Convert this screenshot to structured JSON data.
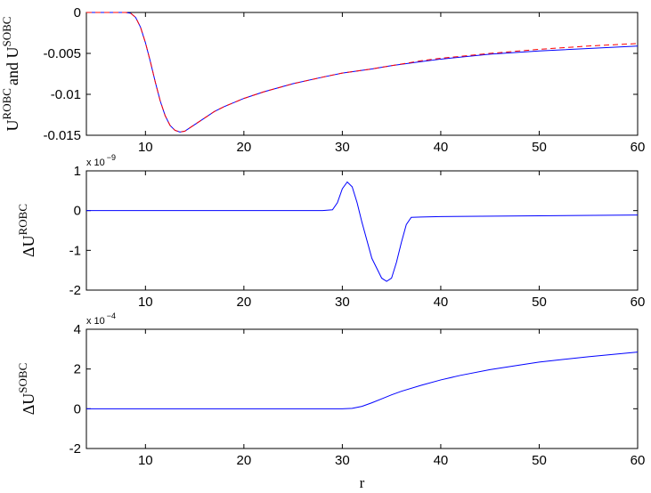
{
  "chart_data": [
    {
      "type": "line",
      "ylabel": [
        "U",
        "ROBC",
        "and U",
        "SOBC"
      ],
      "x": [
        4,
        6,
        8,
        8.5,
        9,
        9.5,
        10,
        10.5,
        11,
        11.5,
        12,
        12.5,
        13,
        13.5,
        14,
        14.5,
        15,
        16,
        17,
        18,
        20,
        22,
        25,
        28,
        30,
        33,
        35,
        38,
        40,
        45,
        50,
        55,
        60
      ],
      "series": [
        {
          "color": "#0000ff",
          "dash": false,
          "values": [
            0,
            0,
            0,
            -0.0001,
            -0.0006,
            -0.0018,
            -0.0037,
            -0.006,
            -0.0085,
            -0.0108,
            -0.0126,
            -0.0138,
            -0.0144,
            -0.0146,
            -0.0145,
            -0.0141,
            -0.0137,
            -0.0129,
            -0.0121,
            -0.0115,
            -0.0105,
            -0.0097,
            -0.0087,
            -0.0079,
            -0.0074,
            -0.0069,
            -0.0065,
            -0.006,
            -0.0057,
            -0.0051,
            -0.0047,
            -0.0044,
            -0.0041
          ]
        },
        {
          "color": "#ff0000",
          "dash": true,
          "values": [
            0,
            0,
            0,
            -0.0001,
            -0.0006,
            -0.0018,
            -0.0037,
            -0.006,
            -0.0085,
            -0.0108,
            -0.0126,
            -0.0138,
            -0.0144,
            -0.0146,
            -0.0145,
            -0.0141,
            -0.0137,
            -0.0129,
            -0.0121,
            -0.0115,
            -0.0105,
            -0.0097,
            -0.0087,
            -0.0079,
            -0.0074,
            -0.0069,
            -0.0065,
            -0.0059,
            -0.0056,
            -0.005,
            -0.0045,
            -0.0041,
            -0.0038
          ]
        }
      ],
      "xlim": [
        4,
        60
      ],
      "xticks": [
        10,
        20,
        30,
        40,
        50,
        60
      ],
      "ylim": [
        -0.015,
        0
      ],
      "yticks": [
        0,
        -0.005,
        -0.01,
        -0.015
      ],
      "grid": false
    },
    {
      "type": "line",
      "ylabel": [
        "ΔU",
        "ROBC"
      ],
      "multiplier": {
        "base": "x 10",
        "exponent": "−9"
      },
      "x": [
        4,
        10,
        20,
        28,
        29,
        29.5,
        30,
        30.5,
        31,
        31.5,
        32,
        33,
        34,
        34.5,
        35,
        35.5,
        36,
        36.5,
        37,
        38,
        40,
        50,
        60
      ],
      "series": [
        {
          "color": "#0000ff",
          "dash": false,
          "values": [
            0,
            0,
            0,
            0,
            0.02,
            0.2,
            0.55,
            0.72,
            0.6,
            0.2,
            -0.3,
            -1.2,
            -1.7,
            -1.78,
            -1.7,
            -1.3,
            -0.8,
            -0.35,
            -0.17,
            -0.16,
            -0.15,
            -0.13,
            -0.11
          ]
        }
      ],
      "xlim": [
        4,
        60
      ],
      "xticks": [
        10,
        20,
        30,
        40,
        50,
        60
      ],
      "ylim": [
        -2,
        1
      ],
      "yticks": [
        1,
        0,
        -1,
        -2
      ],
      "grid": false
    },
    {
      "type": "line",
      "ylabel": [
        "ΔU",
        "SOBC"
      ],
      "xlabel": "r",
      "multiplier": {
        "base": "x 10",
        "exponent": "−4"
      },
      "x": [
        4,
        10,
        20,
        30,
        31,
        32,
        33,
        34,
        35,
        36,
        38,
        40,
        42,
        45,
        48,
        50,
        55,
        60
      ],
      "series": [
        {
          "color": "#0000ff",
          "dash": false,
          "values": [
            0,
            0,
            0,
            0,
            0.02,
            0.12,
            0.3,
            0.5,
            0.7,
            0.88,
            1.18,
            1.45,
            1.68,
            1.97,
            2.2,
            2.35,
            2.62,
            2.85
          ]
        }
      ],
      "xlim": [
        4,
        60
      ],
      "xticks": [
        10,
        20,
        30,
        40,
        50,
        60
      ],
      "ylim": [
        -2,
        4
      ],
      "yticks": [
        4,
        2,
        0,
        -2
      ],
      "grid": false
    }
  ]
}
